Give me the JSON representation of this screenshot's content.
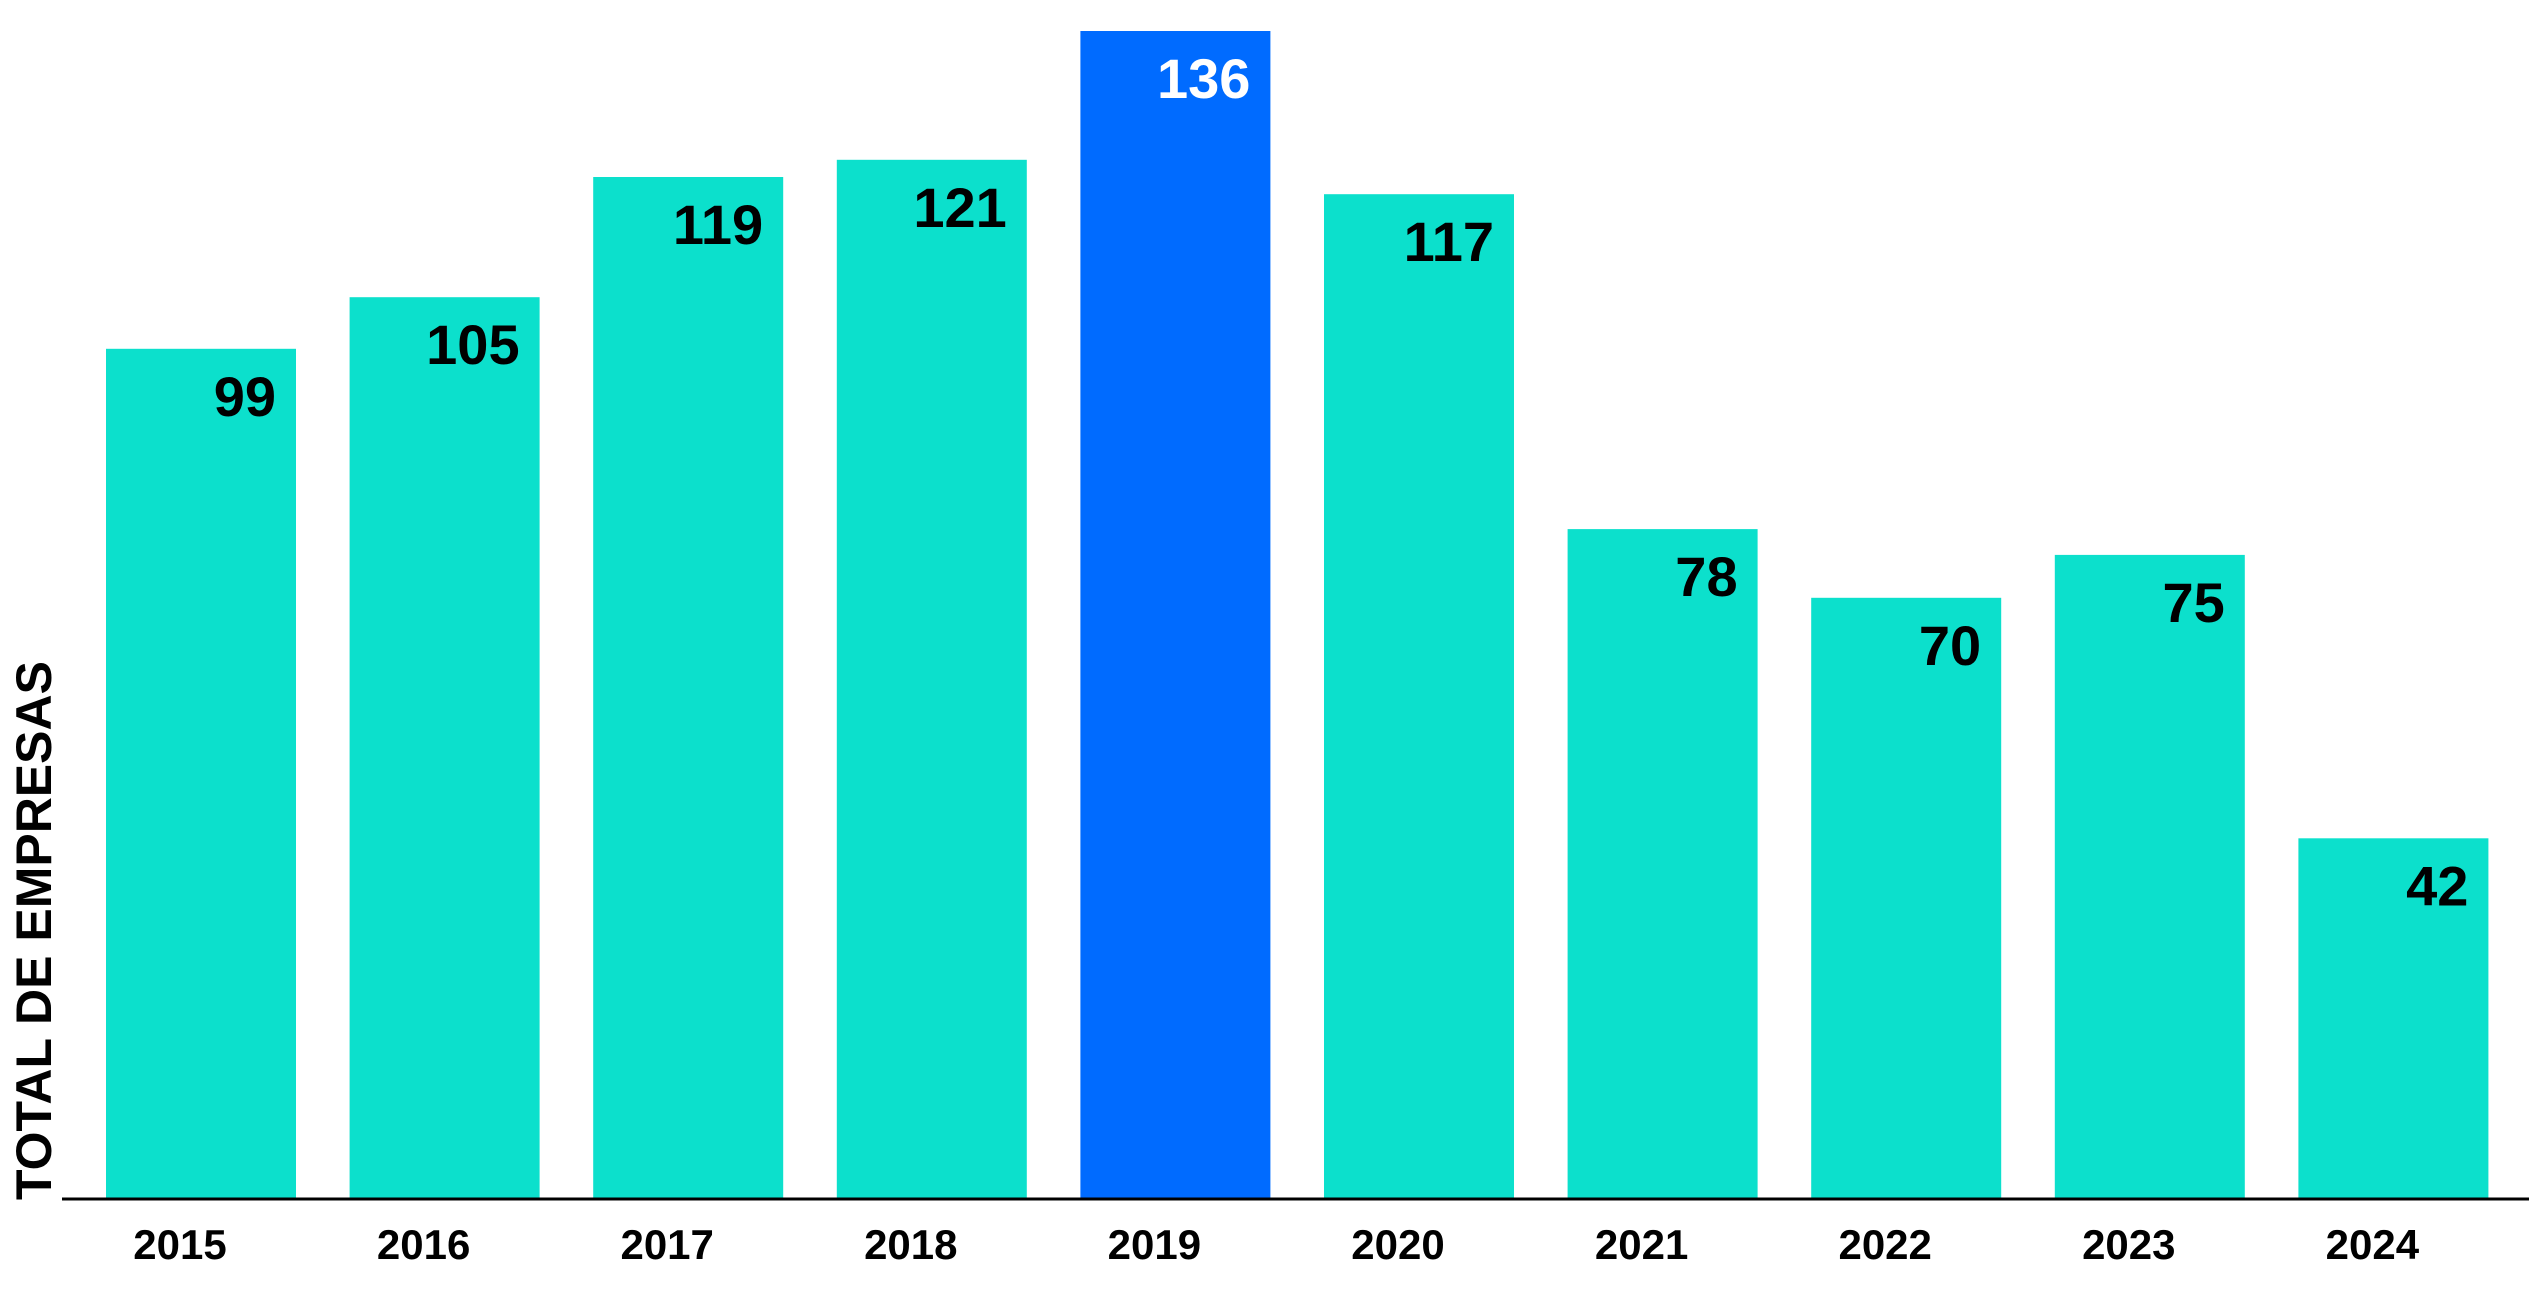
{
  "chart_data": {
    "type": "bar",
    "ylabel": "TOTAL DE  EMPRESAS",
    "xlabel": "",
    "categories": [
      "2015",
      "2016",
      "2017",
      "2018",
      "2019",
      "2020",
      "2021",
      "2022",
      "2023",
      "2024"
    ],
    "values": [
      99,
      105,
      119,
      121,
      136,
      117,
      78,
      70,
      75,
      42
    ],
    "highlight_category": "2019",
    "ylim": [
      0,
      136
    ],
    "grid": false,
    "legend": "none",
    "colors": {
      "bar": "#0CE0CC",
      "highlight": "#006BFF",
      "label_on_bar": "#000000",
      "label_on_highlight": "#FFFFFF",
      "axis": "#000000"
    }
  }
}
